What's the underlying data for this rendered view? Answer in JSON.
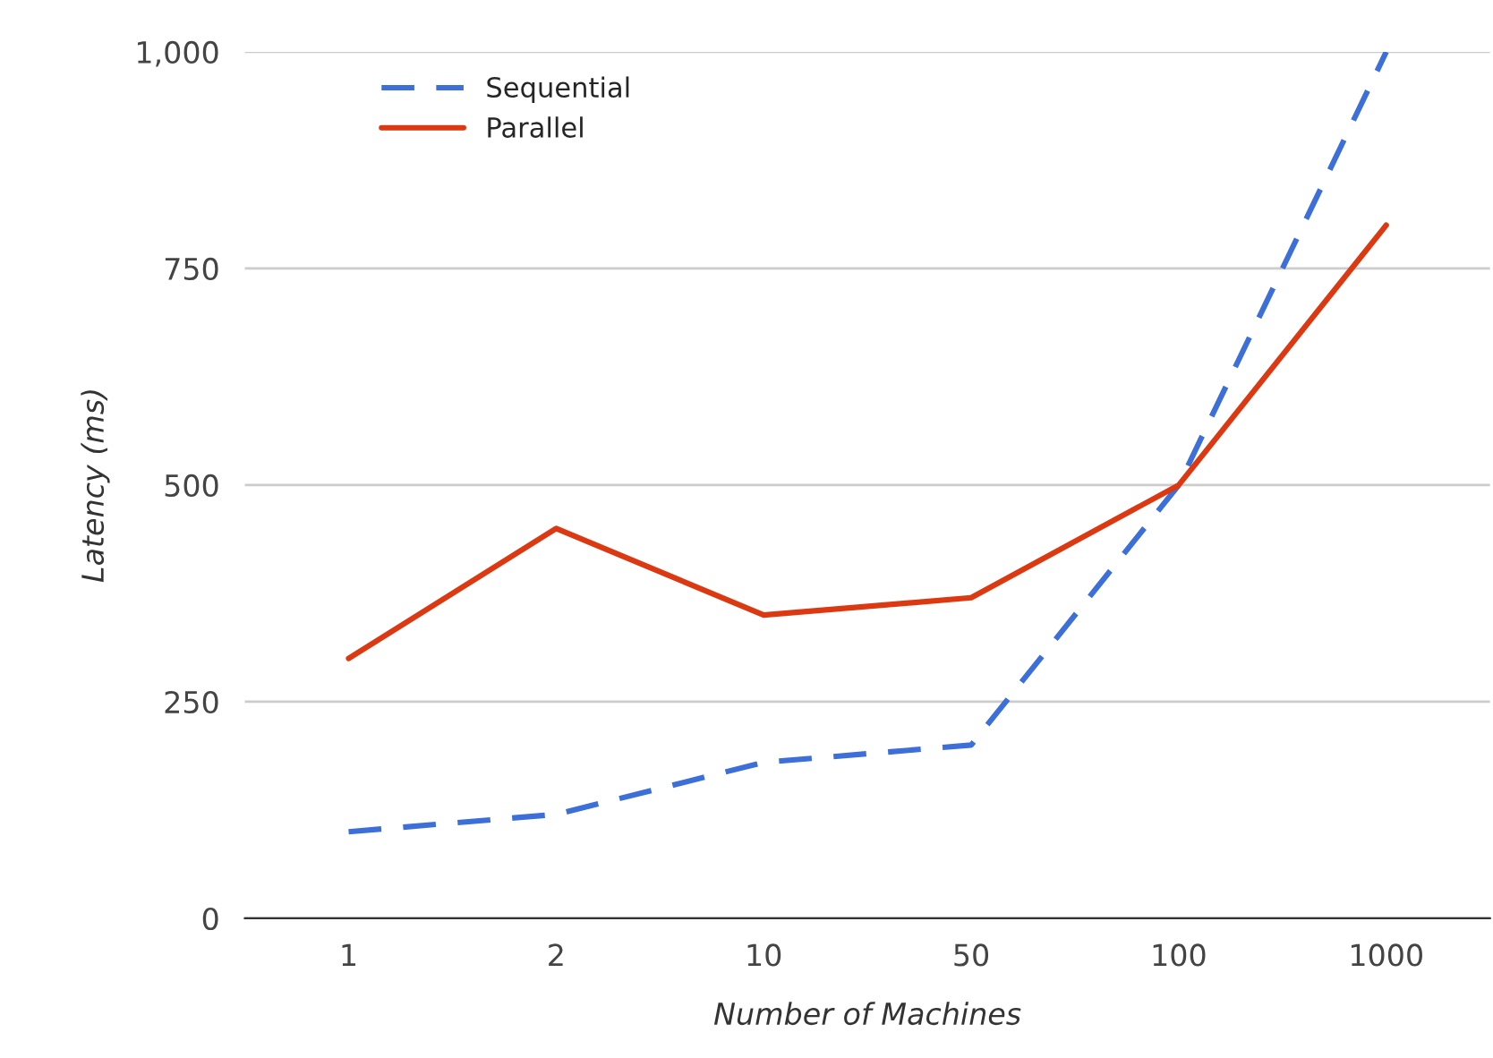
{
  "chart_data": {
    "type": "line",
    "xlabel": "Number of Machines",
    "ylabel": "Latency (ms)",
    "categories": [
      "1",
      "2",
      "10",
      "50",
      "100",
      "1000"
    ],
    "series": [
      {
        "name": "Sequential",
        "color": "#3d6fd9",
        "line_style": "dashed",
        "values": [
          100,
          120,
          180,
          200,
          500,
          1000
        ]
      },
      {
        "name": "Parallel",
        "color": "#dc3912",
        "line_style": "solid",
        "values": [
          300,
          450,
          350,
          370,
          500,
          800
        ]
      }
    ],
    "ylim": [
      0,
      1000
    ],
    "yticks": [
      0,
      250,
      500,
      750,
      {
        "value": 1000,
        "label": "1,000"
      }
    ],
    "grid": "y",
    "legend": "top left",
    "marker": "none"
  }
}
